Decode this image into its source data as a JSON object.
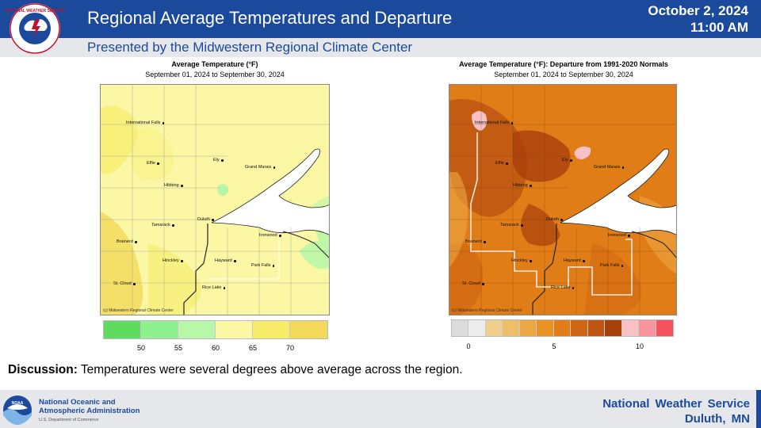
{
  "header": {
    "title": "Regional Average Temperatures and Departure",
    "subtitle": "Presented by the Midwestern Regional Climate Center",
    "date": "October 2, 2024",
    "time": "11:00 AM",
    "logo_text": "NATIONAL WEATHER SERVICE"
  },
  "left_map": {
    "title": "Average Temperature (°F)",
    "dates": "September 01, 2024 to September 30, 2024",
    "credit": "(c) Midwestern Regional Climate Center",
    "cities": [
      "International Falls",
      "Effie",
      "Ely",
      "Grand Marais",
      "Hibbing",
      "Duluth",
      "Tamarack",
      "Brainerd",
      "Ironwood",
      "Hinckley",
      "Hayward",
      "Park Falls",
      "St. Cloud",
      "Rice Lake"
    ],
    "legend_colors": [
      "#5fdb5f",
      "#8ef08e",
      "#b9f7a8",
      "#fbf7a5",
      "#f7ec6a",
      "#f3d95a"
    ],
    "legend_ticks": [
      "50",
      "55",
      "60",
      "65",
      "70"
    ]
  },
  "right_map": {
    "title": "Average Temperature (°F): Departure from 1991-2020 Normals",
    "dates": "September 01, 2024 to September 30, 2024",
    "credit": "(c) Midwestern Regional Climate Center",
    "cities": [
      "International Falls",
      "Effie",
      "Ely",
      "Grand Marais",
      "Hibbing",
      "Duluth",
      "Tamarack",
      "Brainerd",
      "Ironwood",
      "Hinckley",
      "Hayward",
      "Park Falls",
      "St. Cloud",
      "Rice Lake"
    ],
    "legend_colors": [
      "#dcdcdc",
      "#ececec",
      "#f0cf8a",
      "#eebf6a",
      "#eca744",
      "#ea9224",
      "#e07d16",
      "#cf6612",
      "#bd5612",
      "#a8400c",
      "#f7c1c6",
      "#f8929d",
      "#f2535f"
    ],
    "legend_ticks": [
      "0",
      "5",
      "10"
    ]
  },
  "discussion": {
    "label": "Discussion:",
    "text": " Temperatures were several degrees above average across the region."
  },
  "footer": {
    "noaa_line1": "National Oceanic and",
    "noaa_line2": "Atmospheric Administration",
    "noaa_dept": "U.S. Department of Commerce",
    "office_line1": "National Weather Service",
    "office_line2": "Duluth, MN",
    "noaa_logo_text": "NOAA"
  },
  "colors": {
    "brand_blue": "#1b4a9c",
    "footer_gray": "#e6e7ea"
  }
}
